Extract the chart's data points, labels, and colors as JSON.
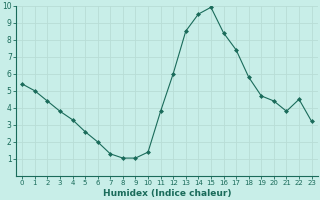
{
  "x": [
    0,
    1,
    2,
    3,
    4,
    5,
    6,
    7,
    8,
    9,
    10,
    11,
    12,
    13,
    14,
    15,
    16,
    17,
    18,
    19,
    20,
    21,
    22,
    23
  ],
  "y": [
    5.4,
    5.0,
    4.4,
    3.8,
    3.3,
    2.6,
    2.0,
    1.3,
    1.05,
    1.05,
    1.4,
    3.8,
    6.0,
    8.5,
    9.5,
    9.9,
    8.4,
    7.4,
    5.8,
    4.7,
    4.4,
    3.8,
    4.5,
    3.2
  ],
  "line_color": "#1a6b5a",
  "marker": "D",
  "marker_size": 2.0,
  "bg_color": "#c8eee8",
  "grid_color": "#b8ddd6",
  "xlabel": "Humidex (Indice chaleur)",
  "xlim": [
    -0.5,
    23.5
  ],
  "ylim": [
    0,
    10
  ],
  "xticks": [
    0,
    1,
    2,
    3,
    4,
    5,
    6,
    7,
    8,
    9,
    10,
    11,
    12,
    13,
    14,
    15,
    16,
    17,
    18,
    19,
    20,
    21,
    22,
    23
  ],
  "yticks": [
    1,
    2,
    3,
    4,
    5,
    6,
    7,
    8,
    9,
    10
  ],
  "xlabel_fontsize": 6.5,
  "xtick_fontsize": 5.0,
  "ytick_fontsize": 5.5
}
